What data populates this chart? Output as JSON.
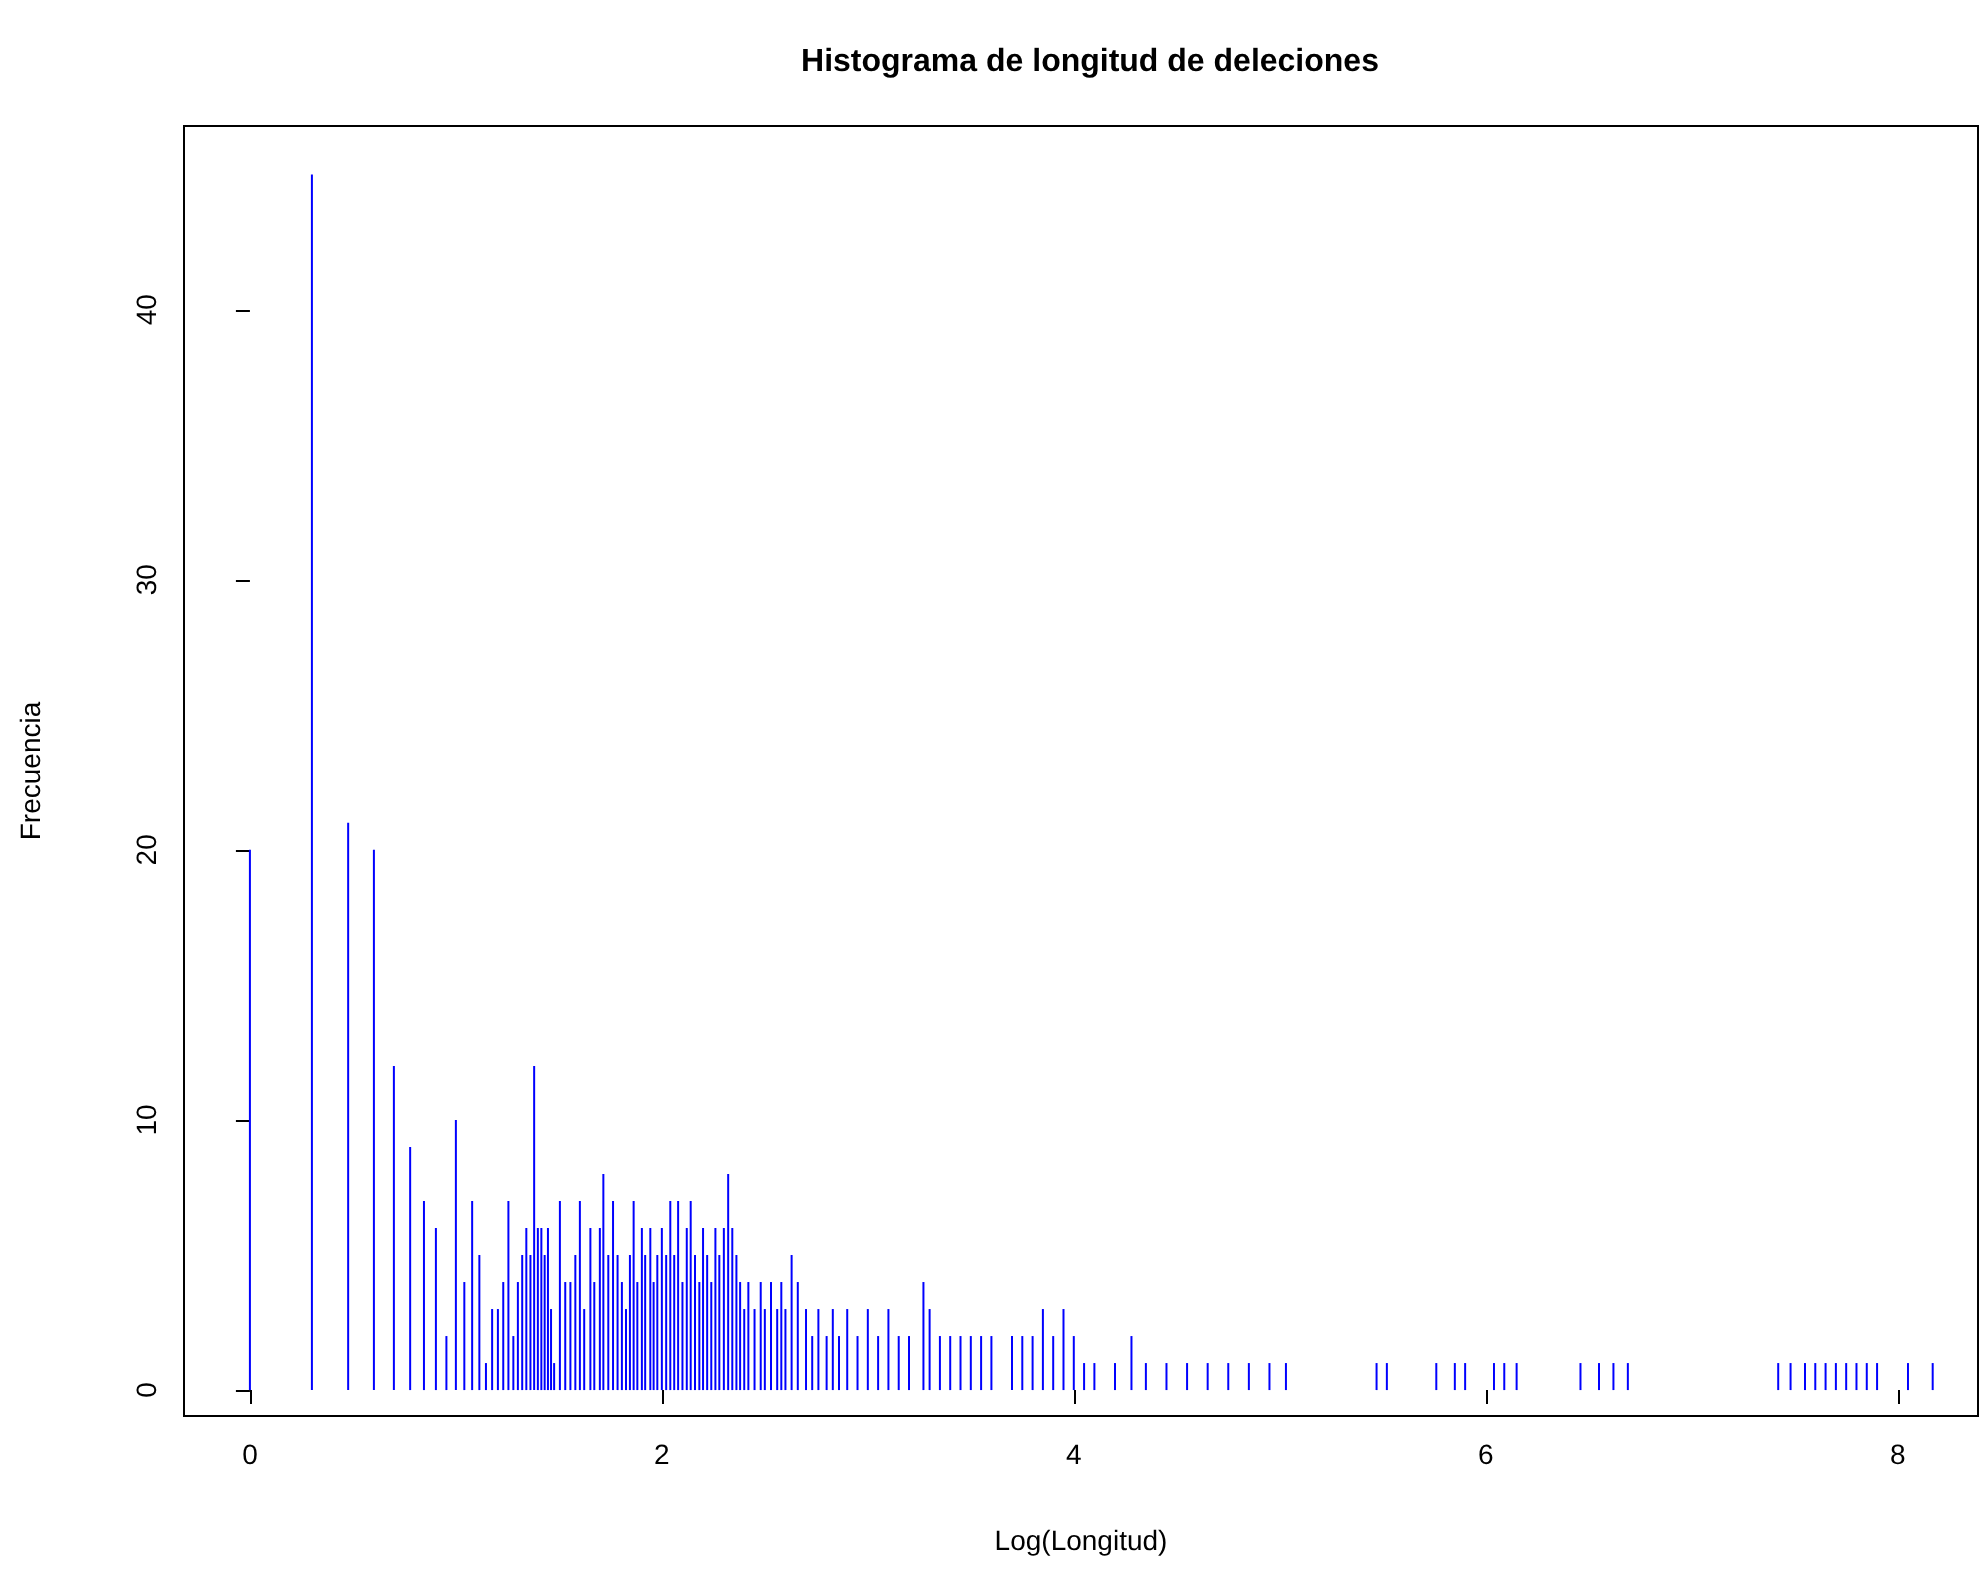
{
  "chart_data": {
    "type": "bar",
    "title": "Histograma de longitud de deleciones",
    "xlabel": "Log(Longitud)",
    "ylabel": "Frecuencia",
    "color": "#0000ff",
    "grid": false,
    "xlim": [
      -0.32,
      8.39
    ],
    "xticks": [
      0,
      2,
      4,
      6,
      8
    ],
    "ylim": [
      -0.96,
      46.8
    ],
    "yticks": [
      0,
      10,
      20,
      30,
      40
    ],
    "x": [
      0,
      0.301,
      0.477,
      0.602,
      0.699,
      0.778,
      0.845,
      0.903,
      0.954,
      1.0,
      1.041,
      1.079,
      1.114,
      1.146,
      1.176,
      1.204,
      1.23,
      1.255,
      1.279,
      1.301,
      1.322,
      1.342,
      1.362,
      1.38,
      1.398,
      1.415,
      1.431,
      1.447,
      1.462,
      1.477,
      1.505,
      1.531,
      1.556,
      1.58,
      1.602,
      1.623,
      1.653,
      1.672,
      1.699,
      1.716,
      1.74,
      1.763,
      1.785,
      1.806,
      1.826,
      1.845,
      1.863,
      1.881,
      1.903,
      1.919,
      1.944,
      1.96,
      1.978,
      2.0,
      2.021,
      2.041,
      2.06,
      2.079,
      2.1,
      2.121,
      2.14,
      2.161,
      2.182,
      2.2,
      2.22,
      2.24,
      2.26,
      2.279,
      2.301,
      2.322,
      2.342,
      2.362,
      2.38,
      2.4,
      2.42,
      2.45,
      2.48,
      2.5,
      2.53,
      2.56,
      2.58,
      2.6,
      2.63,
      2.66,
      2.7,
      2.73,
      2.76,
      2.8,
      2.83,
      2.86,
      2.9,
      2.95,
      3.0,
      3.05,
      3.1,
      3.15,
      3.2,
      3.27,
      3.3,
      3.35,
      3.4,
      3.45,
      3.5,
      3.55,
      3.6,
      3.7,
      3.75,
      3.8,
      3.85,
      3.9,
      3.95,
      4.0,
      4.05,
      4.1,
      4.2,
      4.28,
      4.35,
      4.45,
      4.55,
      4.65,
      4.75,
      4.85,
      4.95,
      5.03,
      5.47,
      5.52,
      5.76,
      5.85,
      5.9,
      6.04,
      6.09,
      6.15,
      6.46,
      6.55,
      6.62,
      6.69,
      7.42,
      7.48,
      7.55,
      7.6,
      7.65,
      7.7,
      7.75,
      7.8,
      7.85,
      7.9,
      8.05,
      8.17
    ],
    "values": [
      20,
      45,
      21,
      20,
      12,
      9,
      7,
      6,
      2,
      10,
      4,
      7,
      5,
      1,
      3,
      3,
      4,
      7,
      2,
      4,
      5,
      6,
      5,
      12,
      6,
      6,
      5,
      6,
      3,
      1,
      7,
      4,
      4,
      5,
      7,
      3,
      6,
      4,
      6,
      8,
      5,
      7,
      5,
      4,
      3,
      5,
      7,
      4,
      6,
      5,
      6,
      4,
      5,
      6,
      5,
      7,
      5,
      7,
      4,
      6,
      7,
      5,
      4,
      6,
      5,
      4,
      6,
      5,
      6,
      8,
      6,
      5,
      4,
      3,
      4,
      3,
      4,
      3,
      4,
      3,
      4,
      3,
      5,
      4,
      3,
      2,
      3,
      2,
      3,
      2,
      3,
      2,
      3,
      2,
      3,
      2,
      2,
      4,
      3,
      2,
      2,
      2,
      2,
      2,
      2,
      2,
      2,
      2,
      3,
      2,
      3,
      2,
      1,
      1,
      1,
      2,
      1,
      1,
      1,
      1,
      1,
      1,
      1,
      1,
      1,
      1,
      1,
      1,
      1,
      1,
      1,
      1,
      1,
      1,
      1,
      1,
      1,
      1,
      1,
      1,
      1,
      1,
      1,
      1,
      1,
      1,
      1,
      1
    ]
  }
}
